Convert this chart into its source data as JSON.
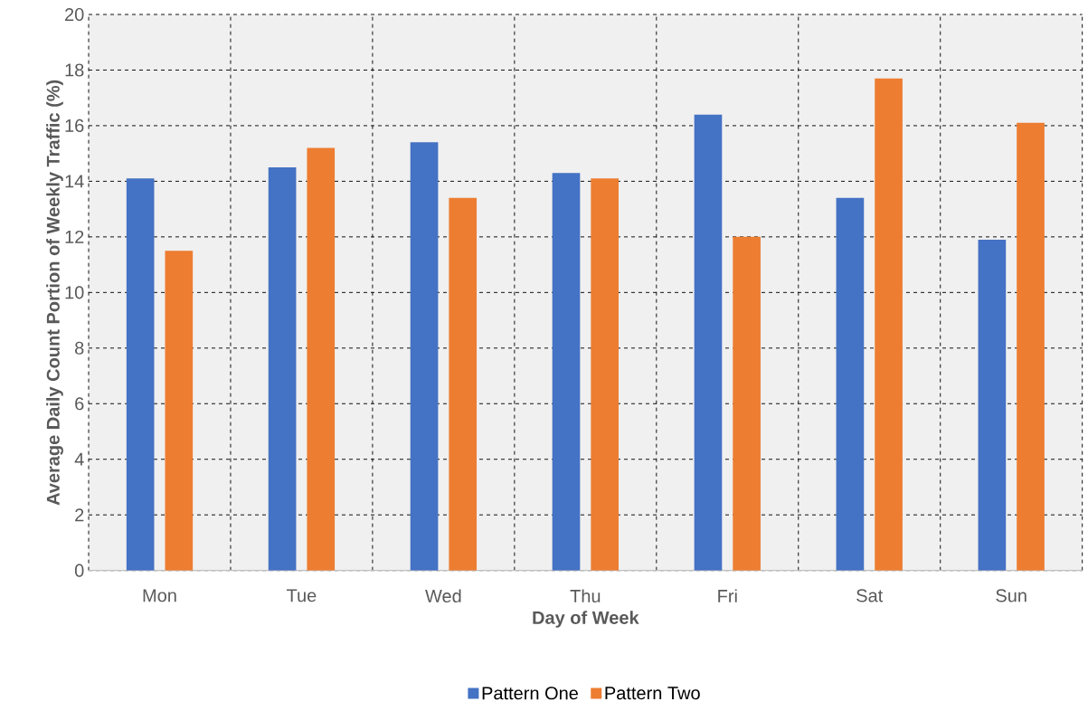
{
  "chart_data": {
    "type": "bar",
    "xlabel": "Day of Week",
    "ylabel": "Average Daily Count Portion of Weekly Traffic (%)",
    "categories": [
      "Mon",
      "Tue",
      "Wed",
      "Thu",
      "Fri",
      "Sat",
      "Sun"
    ],
    "series": [
      {
        "name": "Pattern One",
        "color": "#4472c4",
        "values": [
          14.1,
          14.5,
          15.4,
          14.3,
          16.4,
          13.4,
          11.9
        ]
      },
      {
        "name": "Pattern Two",
        "color": "#ed7d31",
        "values": [
          11.5,
          15.2,
          13.4,
          14.1,
          12.0,
          17.7,
          16.1
        ]
      }
    ],
    "ylim": [
      0,
      20
    ],
    "yticks": [
      0,
      2,
      4,
      6,
      8,
      10,
      12,
      14,
      16,
      18,
      20
    ],
    "grid": true,
    "legend": "bottom"
  }
}
